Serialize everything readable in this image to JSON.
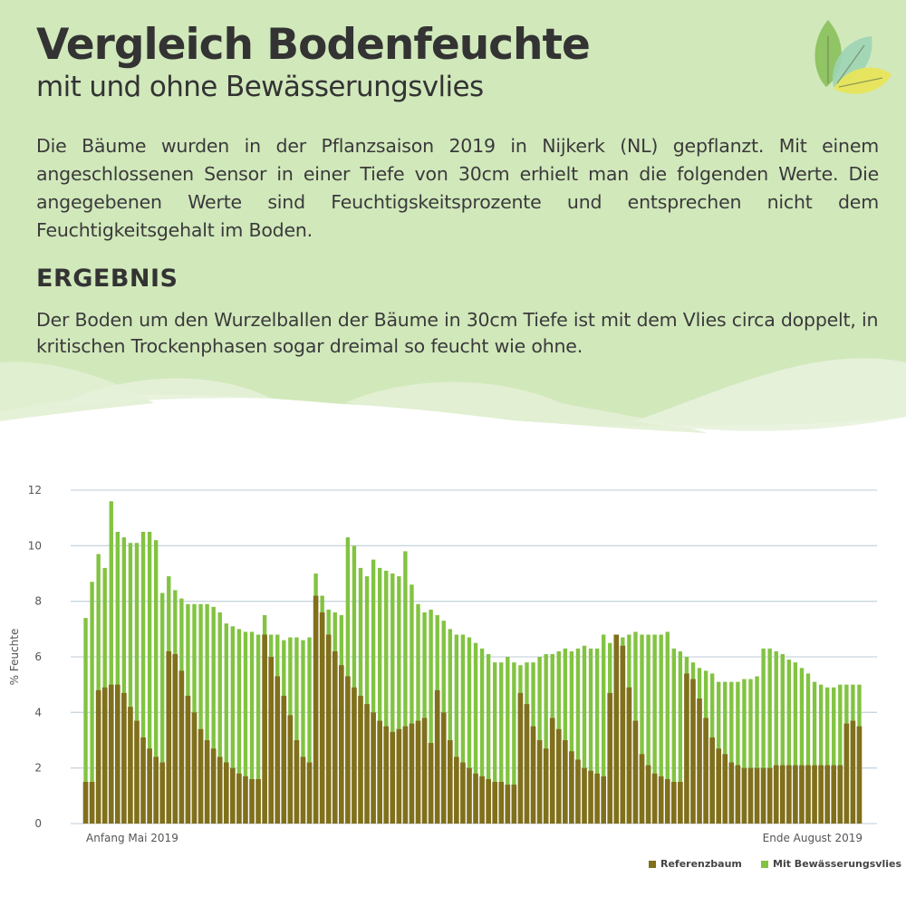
{
  "header": {
    "title": "Vergleich Bodenfeuchte",
    "subtitle": "mit und ohne Bewässerungsvlies",
    "intro": "Die Bäume wurden in der Pflanzsaison 2019 in Nijkerk (NL) gepflanzt. Mit einem angeschlossenen Sensor in einer Tiefe von 30cm erhielt man die folgenden Werte. Die angegebenen Werte sind Feuchtigskeitsprozente und entsprechen nicht dem Feuchtigkeitsgehalt im Boden.",
    "result_heading": "ERGEBNIS",
    "result_text": "Der Boden um den Wurzelballen der Bäume in 30cm Tiefe ist mit dem Vlies circa doppelt, in kritischen Trockenphasen sogar dreimal so feucht wie ohne.",
    "logo_icon": "leaves-icon"
  },
  "colors": {
    "header_bg": "#d1e8bb",
    "referenz": "#80701c",
    "vlies": "#82c341",
    "gridline": "#c9d6e0"
  },
  "chart_data": {
    "type": "bar",
    "title": "",
    "xlabel": "",
    "ylabel": "% Feuchte",
    "ylim": [
      0,
      12
    ],
    "yticks": [
      0,
      2,
      4,
      6,
      8,
      10,
      12
    ],
    "x_tick_labels": [
      {
        "label": "Anfang Mai 2019",
        "position": "start"
      },
      {
        "label": "Ende August 2019",
        "position": "end"
      }
    ],
    "grid": true,
    "legend": "bottom-right",
    "series": [
      {
        "name": "Referenzbaum",
        "color": "#80701c",
        "values": [
          1.5,
          1.5,
          4.8,
          4.9,
          5.0,
          5.0,
          4.7,
          4.2,
          3.7,
          3.1,
          2.7,
          2.4,
          2.2,
          6.2,
          6.1,
          5.5,
          4.6,
          4.0,
          3.4,
          3.0,
          2.7,
          2.4,
          2.2,
          2.0,
          1.8,
          1.7,
          1.6,
          1.6,
          6.8,
          6.0,
          5.3,
          4.6,
          3.9,
          3.0,
          2.4,
          2.2,
          8.2,
          7.6,
          6.8,
          6.2,
          5.7,
          5.3,
          4.9,
          4.6,
          4.3,
          4.0,
          3.7,
          3.5,
          3.3,
          3.4,
          3.5,
          3.6,
          3.7,
          3.8,
          2.9,
          4.8,
          4.0,
          3.0,
          2.4,
          2.2,
          2.0,
          1.8,
          1.7,
          1.6,
          1.5,
          1.5,
          1.4,
          1.4,
          4.7,
          4.3,
          3.5,
          3.0,
          2.7,
          3.8,
          3.4,
          3.0,
          2.6,
          2.3,
          2.0,
          1.9,
          1.8,
          1.7,
          4.7,
          6.8,
          6.4,
          4.9,
          3.7,
          2.5,
          2.1,
          1.8,
          1.7,
          1.6,
          1.5,
          1.5,
          5.4,
          5.2,
          4.5,
          3.8,
          3.1,
          2.7,
          2.5,
          2.2,
          2.1,
          2.0,
          2.0,
          2.0,
          2.0,
          2.0,
          2.1,
          2.1,
          2.1,
          2.1,
          2.1,
          2.1,
          2.1,
          2.1,
          2.1,
          2.1,
          2.1,
          3.6,
          3.7,
          3.5
        ]
      },
      {
        "name": "Mit Bewässerungsvlies",
        "color": "#82c341",
        "values": [
          7.4,
          8.7,
          9.7,
          9.2,
          11.6,
          10.5,
          10.3,
          10.1,
          10.1,
          10.5,
          10.5,
          10.2,
          8.3,
          8.9,
          8.4,
          8.1,
          7.9,
          7.9,
          7.9,
          7.9,
          7.8,
          7.6,
          7.2,
          7.1,
          7.0,
          6.9,
          6.9,
          6.8,
          7.5,
          6.8,
          6.8,
          6.6,
          6.7,
          6.7,
          6.6,
          6.7,
          9.0,
          8.2,
          7.7,
          7.6,
          7.5,
          10.3,
          10.0,
          9.2,
          8.9,
          9.5,
          9.2,
          9.1,
          9.0,
          8.9,
          9.8,
          8.6,
          7.9,
          7.6,
          7.7,
          7.5,
          7.3,
          7.0,
          6.8,
          6.8,
          6.7,
          6.5,
          6.3,
          6.1,
          5.8,
          5.8,
          6.0,
          5.8,
          5.7,
          5.8,
          5.8,
          6.0,
          6.1,
          6.1,
          6.2,
          6.3,
          6.2,
          6.3,
          6.4,
          6.3,
          6.3,
          6.8,
          6.5,
          6.5,
          6.7,
          6.8,
          6.9,
          6.8,
          6.8,
          6.8,
          6.8,
          6.9,
          6.3,
          6.2,
          6.0,
          5.8,
          5.6,
          5.5,
          5.4,
          5.1,
          5.1,
          5.1,
          5.1,
          5.2,
          5.2,
          5.3,
          6.3,
          6.3,
          6.2,
          6.1,
          5.9,
          5.8,
          5.6,
          5.4,
          5.1,
          5.0,
          4.9,
          4.9,
          5.0,
          5.0,
          5.0,
          5.0
        ]
      }
    ]
  }
}
